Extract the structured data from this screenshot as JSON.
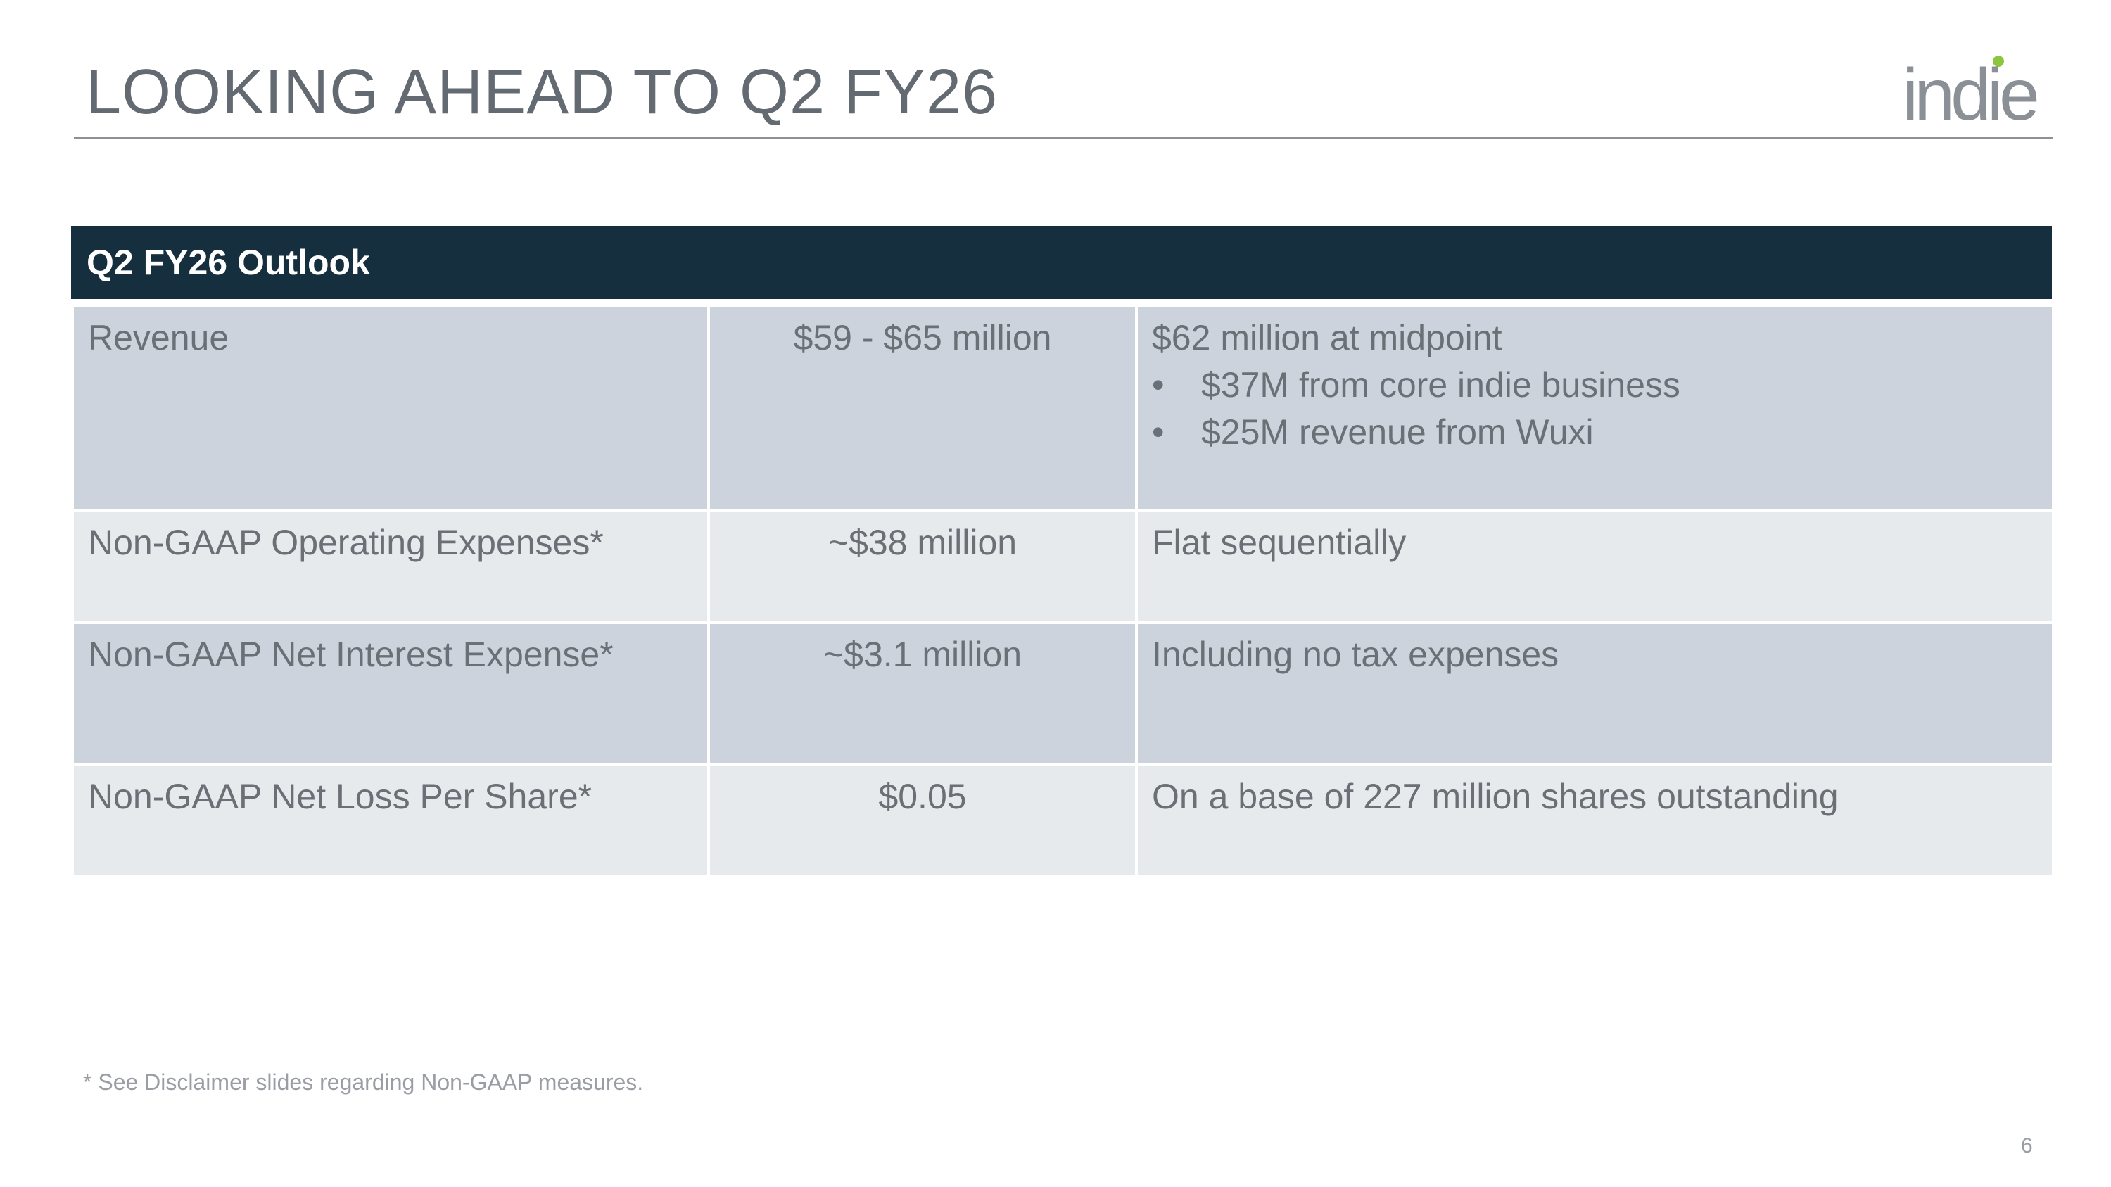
{
  "slide": {
    "title": "LOOKING AHEAD TO Q2 FY26",
    "logo_text": "indie",
    "footnote": "* See Disclaimer slides regarding Non-GAAP measures.",
    "page_number": "6"
  },
  "colors": {
    "header_bg": "#152f3e",
    "row_dark": "#ccd3dc",
    "row_light": "#e7eaed",
    "text": "#6b6f76",
    "logo_gray": "#8a9096",
    "logo_green": "#8cc63f"
  },
  "table": {
    "header": "Q2 FY26 Outlook",
    "rows": [
      {
        "metric": "Revenue",
        "value": "$59 - $65 million",
        "note": "$62 million at midpoint",
        "bullets": [
          "$37M from core indie business",
          "$25M revenue from Wuxi"
        ]
      },
      {
        "metric": "Non-GAAP Operating Expenses*",
        "value": "~$38 million",
        "note": "Flat sequentially"
      },
      {
        "metric": "Non-GAAP Net Interest Expense*",
        "value": "~$3.1 million",
        "note": "Including no tax expenses"
      },
      {
        "metric": "Non-GAAP Net Loss Per Share*",
        "value": "$0.05",
        "note": "On a base of 227 million shares outstanding"
      }
    ]
  }
}
